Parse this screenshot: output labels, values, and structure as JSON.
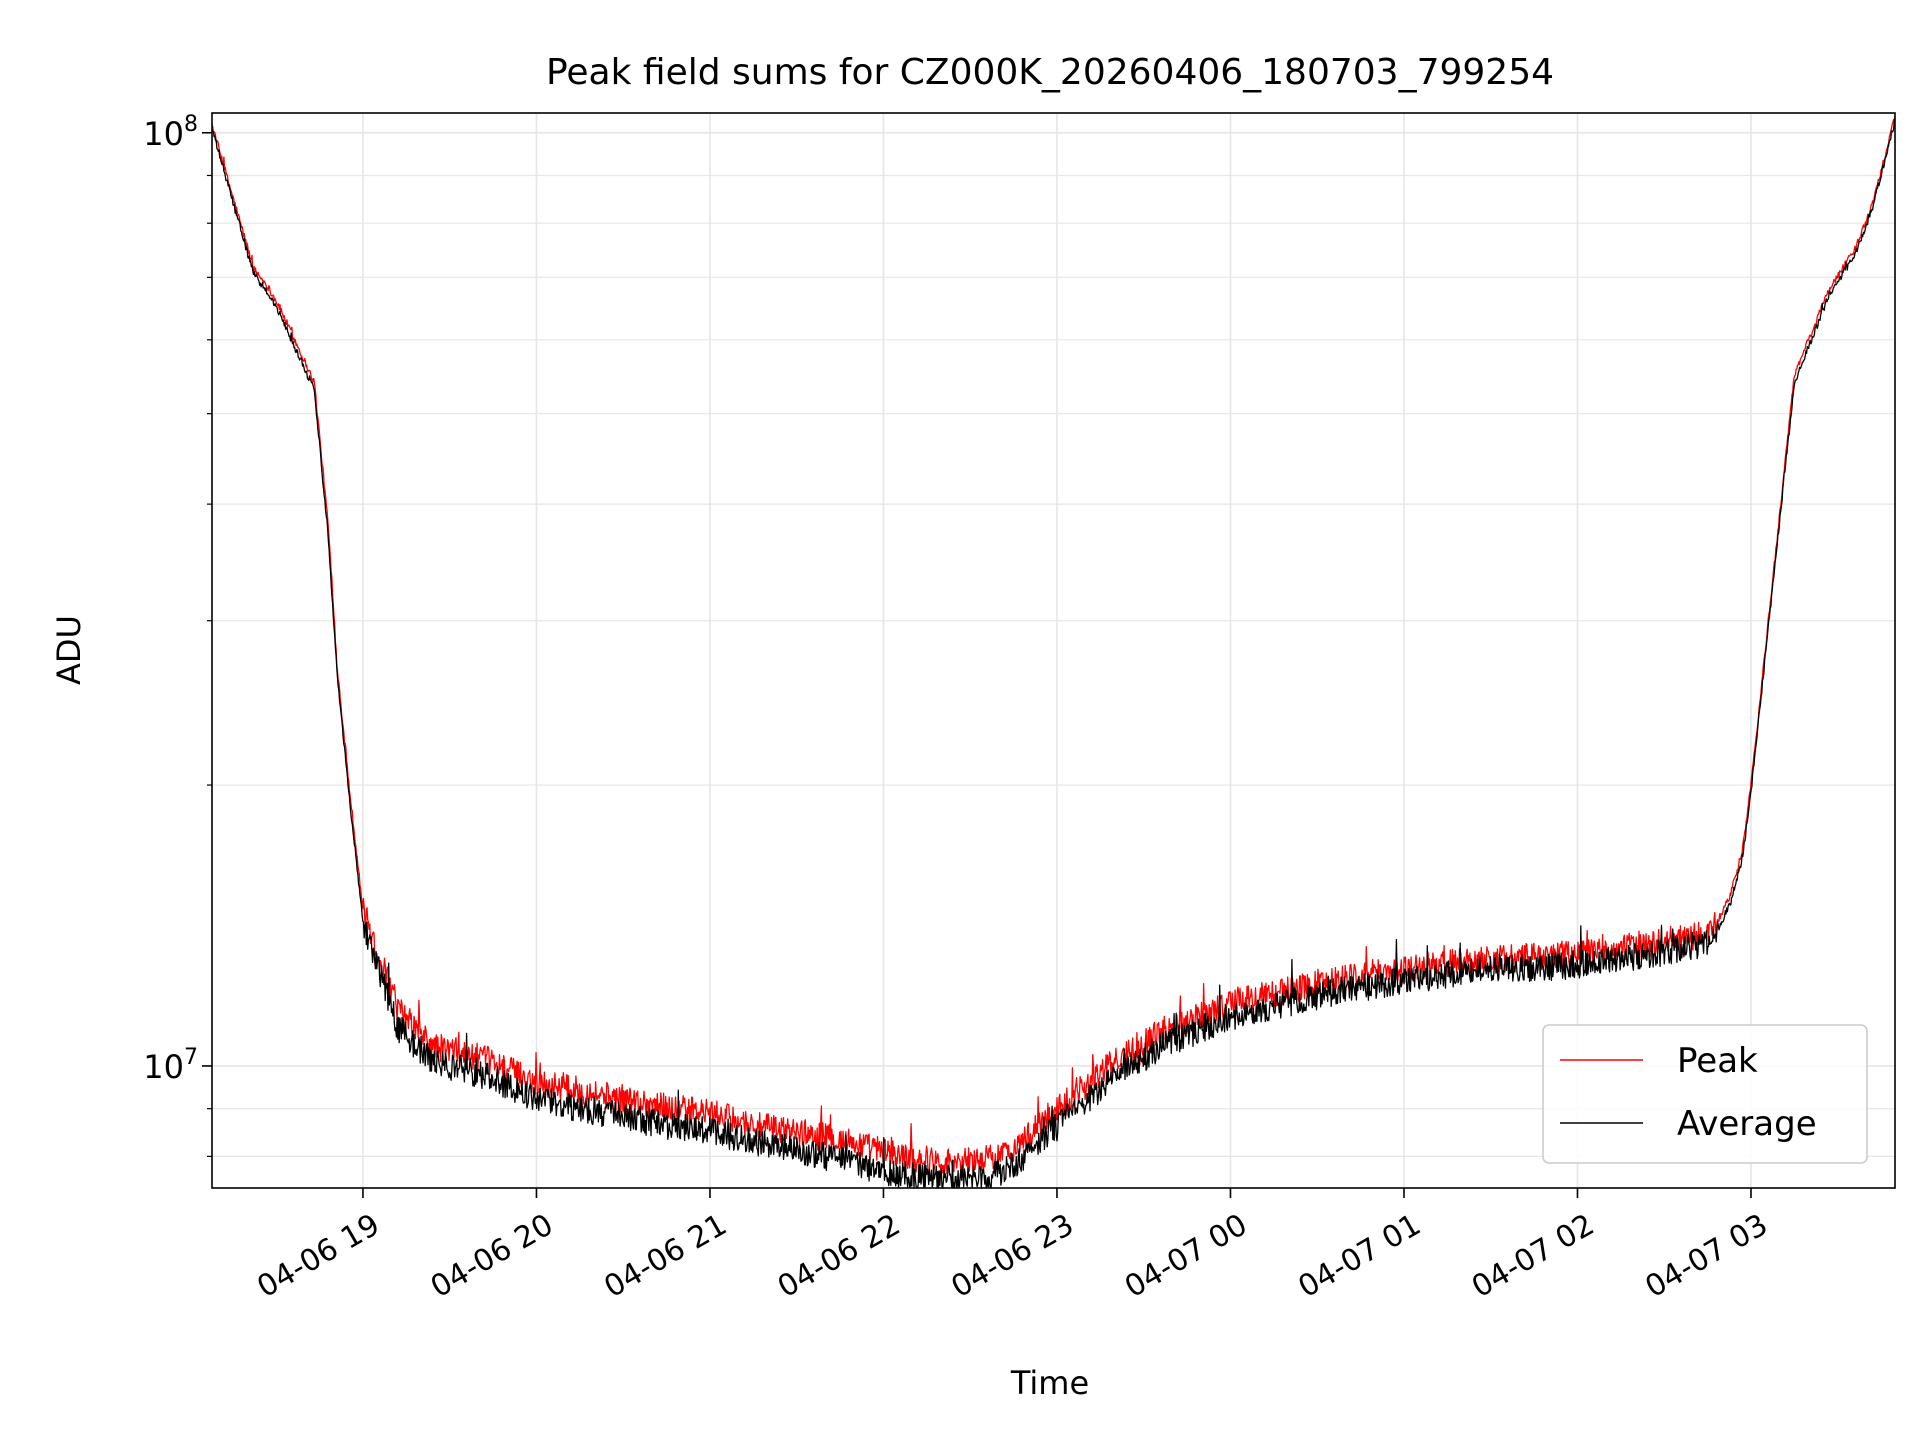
{
  "chart_data": {
    "type": "line",
    "title": "Peak field sums for CZ000K_20260406_180703_799254",
    "xlabel": "Time",
    "ylabel": "ADU",
    "yscale": "log",
    "ylim": [
      7400000,
      105000000
    ],
    "xlim_hours": [
      18.13,
      27.83
    ],
    "grid": true,
    "legend_position": "lower-right",
    "y_ticks": [
      {
        "value": 10000000,
        "base": "10",
        "exp": "7"
      },
      {
        "value": 100000000,
        "base": "10",
        "exp": "8"
      }
    ],
    "x_ticks": [
      {
        "hour": 19,
        "label": "04-06 19"
      },
      {
        "hour": 20,
        "label": "04-06 20"
      },
      {
        "hour": 21,
        "label": "04-06 21"
      },
      {
        "hour": 22,
        "label": "04-06 22"
      },
      {
        "hour": 23,
        "label": "04-06 23"
      },
      {
        "hour": 24,
        "label": "04-07 00"
      },
      {
        "hour": 25,
        "label": "04-07 01"
      },
      {
        "hour": 26,
        "label": "04-07 02"
      },
      {
        "hour": 27,
        "label": "04-07 03"
      }
    ],
    "series": [
      {
        "name": "Peak",
        "color": "#ff0000",
        "x_hours": [
          18.13,
          18.37,
          18.45,
          18.52,
          18.72,
          18.8,
          18.85,
          18.92,
          19.0,
          19.2,
          19.4,
          19.6,
          19.75,
          20.0,
          20.4,
          20.8,
          21.0,
          21.3,
          21.6,
          21.8,
          22.0,
          22.2,
          22.4,
          22.6,
          22.7,
          22.8,
          23.0,
          23.3,
          23.6,
          24.0,
          24.3,
          24.6,
          25.0,
          25.4,
          25.8,
          26.2,
          26.5,
          26.72,
          26.8,
          26.88,
          26.95,
          27.0,
          27.1,
          27.25,
          27.45,
          27.6,
          27.7,
          27.83
        ],
        "values": [
          102000000,
          71500000,
          68500000,
          65000000,
          54000000,
          38000000,
          27000000,
          20000000,
          14700000,
          11500000,
          10500000,
          10300000,
          10100000,
          9600000,
          9300000,
          9000000,
          8900000,
          8600000,
          8450000,
          8300000,
          8100000,
          7950000,
          7900000,
          7950000,
          8050000,
          8300000,
          9000000,
          10000000,
          10900000,
          11700000,
          12000000,
          12400000,
          12700000,
          13000000,
          13100000,
          13300000,
          13600000,
          13800000,
          14200000,
          15200000,
          17000000,
          20000000,
          30000000,
          55000000,
          68000000,
          75000000,
          84000000,
          104000000
        ]
      },
      {
        "name": "Average",
        "color": "#000000",
        "x_hours": [
          18.13,
          18.37,
          18.45,
          18.52,
          18.72,
          18.8,
          18.85,
          18.92,
          19.0,
          19.2,
          19.4,
          19.6,
          19.75,
          20.0,
          20.4,
          20.8,
          21.0,
          21.3,
          21.6,
          21.8,
          22.0,
          22.2,
          22.4,
          22.6,
          22.7,
          22.8,
          23.0,
          23.3,
          23.6,
          24.0,
          24.3,
          24.6,
          25.0,
          25.4,
          25.8,
          26.2,
          26.5,
          26.72,
          26.8,
          26.88,
          26.95,
          27.0,
          27.1,
          27.25,
          27.45,
          27.6,
          27.7,
          27.83
        ],
        "values": [
          101000000,
          70500000,
          67500000,
          64000000,
          53000000,
          37000000,
          26500000,
          19500000,
          14300000,
          11000000,
          10100000,
          9900000,
          9700000,
          9200000,
          8900000,
          8600000,
          8500000,
          8250000,
          8050000,
          7900000,
          7700000,
          7600000,
          7550000,
          7600000,
          7700000,
          7950000,
          8650000,
          9600000,
          10500000,
          11300000,
          11650000,
          12000000,
          12350000,
          12650000,
          12750000,
          12950000,
          13250000,
          13500000,
          13900000,
          14900000,
          16700000,
          19600000,
          29500000,
          54000000,
          67000000,
          74000000,
          83000000,
          103000000
        ]
      }
    ]
  }
}
